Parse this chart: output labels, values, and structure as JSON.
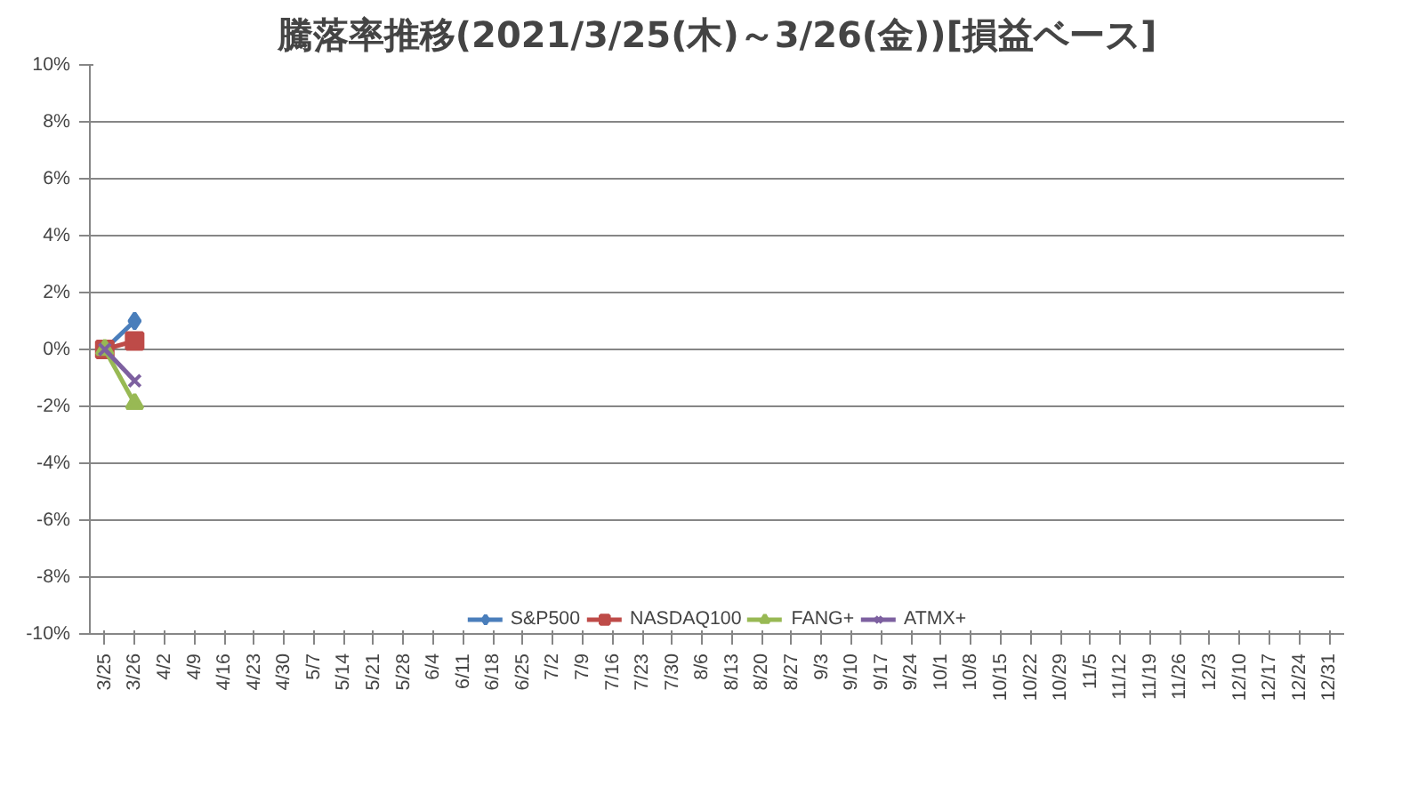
{
  "chart_data": {
    "type": "line",
    "title": "騰落率推移(2021/3/25(木)～3/26(金))[損益ベース]",
    "categories": [
      "3/25",
      "3/26",
      "4/2",
      "4/9",
      "4/16",
      "4/23",
      "4/30",
      "5/7",
      "5/14",
      "5/21",
      "5/28",
      "6/4",
      "6/11",
      "6/18",
      "6/25",
      "7/2",
      "7/9",
      "7/16",
      "7/23",
      "7/30",
      "8/6",
      "8/13",
      "8/20",
      "8/27",
      "9/3",
      "9/10",
      "9/17",
      "9/24",
      "10/1",
      "10/8",
      "10/15",
      "10/22",
      "10/29",
      "11/5",
      "11/12",
      "11/19",
      "11/26",
      "12/3",
      "12/10",
      "12/17",
      "12/24",
      "12/31"
    ],
    "series": [
      {
        "name": "S&P500",
        "color": "#4a7ebb",
        "marker": "diamond",
        "values": [
          0,
          1.0,
          null,
          null,
          null,
          null,
          null,
          null,
          null,
          null,
          null,
          null,
          null,
          null,
          null,
          null,
          null,
          null,
          null,
          null,
          null,
          null,
          null,
          null,
          null,
          null,
          null,
          null,
          null,
          null,
          null,
          null,
          null,
          null,
          null,
          null,
          null,
          null,
          null,
          null,
          null,
          null
        ]
      },
      {
        "name": "NASDAQ100",
        "color": "#be4b48",
        "marker": "square",
        "values": [
          0,
          0.3,
          null,
          null,
          null,
          null,
          null,
          null,
          null,
          null,
          null,
          null,
          null,
          null,
          null,
          null,
          null,
          null,
          null,
          null,
          null,
          null,
          null,
          null,
          null,
          null,
          null,
          null,
          null,
          null,
          null,
          null,
          null,
          null,
          null,
          null,
          null,
          null,
          null,
          null,
          null,
          null
        ]
      },
      {
        "name": "FANG+",
        "color": "#98b954",
        "marker": "triangle",
        "values": [
          0,
          -1.9,
          null,
          null,
          null,
          null,
          null,
          null,
          null,
          null,
          null,
          null,
          null,
          null,
          null,
          null,
          null,
          null,
          null,
          null,
          null,
          null,
          null,
          null,
          null,
          null,
          null,
          null,
          null,
          null,
          null,
          null,
          null,
          null,
          null,
          null,
          null,
          null,
          null,
          null,
          null,
          null
        ]
      },
      {
        "name": "ATMX+",
        "color": "#7d60a0",
        "marker": "cross",
        "values": [
          0,
          -1.1,
          null,
          null,
          null,
          null,
          null,
          null,
          null,
          null,
          null,
          null,
          null,
          null,
          null,
          null,
          null,
          null,
          null,
          null,
          null,
          null,
          null,
          null,
          null,
          null,
          null,
          null,
          null,
          null,
          null,
          null,
          null,
          null,
          null,
          null,
          null,
          null,
          null,
          null,
          null,
          null
        ]
      }
    ],
    "ylim": [
      -10,
      10
    ],
    "yticks": [
      {
        "value": -10,
        "label": "-10%"
      },
      {
        "value": -8,
        "label": "-8%"
      },
      {
        "value": -6,
        "label": "-6%"
      },
      {
        "value": -4,
        "label": "-4%"
      },
      {
        "value": -2,
        "label": "-2%"
      },
      {
        "value": 0,
        "label": "0%"
      },
      {
        "value": 2,
        "label": "2%"
      },
      {
        "value": 4,
        "label": "4%"
      },
      {
        "value": 6,
        "label": "6%"
      },
      {
        "value": 8,
        "label": "8%"
      },
      {
        "value": 10,
        "label": "10%"
      }
    ],
    "grid": "y",
    "legend": "bottom",
    "line_style": "solid"
  }
}
